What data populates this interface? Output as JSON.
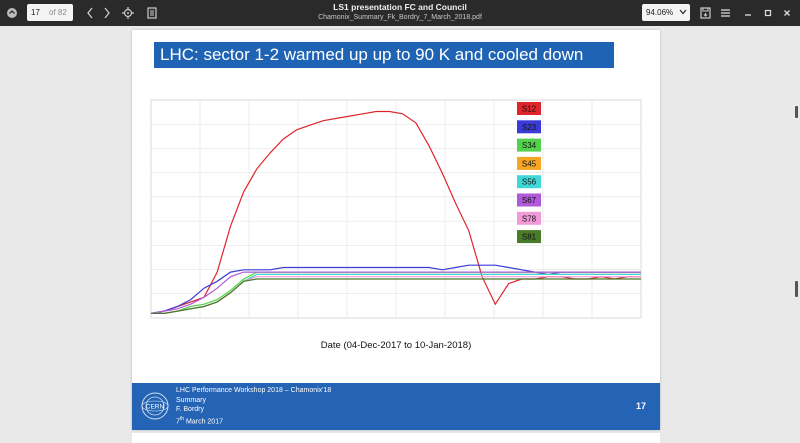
{
  "toolbar": {
    "page_current": "17",
    "page_of": "of 82",
    "doc_title": "LS1 presentation FC and Council",
    "doc_filename": "Chamonix_Summary_Fk_Bordry_7_March_2018.pdf",
    "zoom": "94.06%"
  },
  "slide": {
    "title": "LHC: sector 1-2 warmed up up to 90 K and cooled down",
    "caption": "Date (04-Dec-2017 to 10-Jan-2018)",
    "footer": {
      "line1": "LHC Performance Workshop 2018 – Chamonix'18",
      "line2": "Summary",
      "line3": "F. Bordry",
      "line4_day": "7",
      "line4_sup": "th",
      "line4_rest": " March 2017",
      "page_number": "17",
      "logo_text": "CERN"
    }
  },
  "chart_data": {
    "type": "line",
    "xlabel": "Date (04-Dec-2017 to 10-Jan-2018)",
    "x": [
      0,
      1,
      2,
      3,
      4,
      5,
      6,
      7,
      8,
      9,
      10,
      11,
      12,
      13,
      14,
      15,
      16,
      17,
      18,
      19,
      20,
      21,
      22,
      23,
      24,
      25,
      26,
      27,
      28,
      29,
      30,
      31,
      32,
      33,
      34,
      35,
      36,
      37
    ],
    "series": [
      {
        "name": "S12",
        "color": "#e0242b",
        "values": [
          2,
          3,
          5,
          7,
          9,
          20,
          40,
          55,
          65,
          72,
          78,
          82,
          84,
          86,
          87,
          88,
          89,
          90,
          90,
          89,
          85,
          75,
          63,
          50,
          38,
          18,
          6,
          15,
          17,
          17,
          18,
          18,
          17,
          17,
          18,
          17,
          18,
          18
        ]
      },
      {
        "name": "S23",
        "color": "#3a3ad8",
        "values": [
          2,
          3,
          5,
          8,
          13,
          16,
          20,
          21,
          21,
          21,
          22,
          22,
          22,
          22,
          22,
          22,
          22,
          22,
          22,
          22,
          22,
          22,
          21,
          22,
          23,
          23,
          23,
          22,
          21,
          20,
          19,
          20,
          20,
          20,
          20,
          20,
          20,
          20
        ]
      },
      {
        "name": "S34",
        "color": "#52d24a",
        "values": [
          2,
          2,
          3,
          5,
          6,
          8,
          12,
          17,
          20,
          20,
          20,
          20,
          20,
          20,
          20,
          20,
          20,
          20,
          20,
          20,
          20,
          20,
          20,
          20,
          20,
          20,
          20,
          20,
          20,
          20,
          20,
          20,
          20,
          20,
          20,
          20,
          20,
          20
        ]
      },
      {
        "name": "S45",
        "color": "#f5a623",
        "values": [
          2,
          2,
          3,
          4,
          5,
          7,
          11,
          16,
          19,
          19,
          19,
          19,
          19,
          19,
          19,
          19,
          19,
          19,
          19,
          19,
          19,
          19,
          19,
          19,
          19,
          19,
          19,
          19,
          19,
          19,
          19,
          19,
          19,
          19,
          19,
          19,
          19,
          19
        ]
      },
      {
        "name": "S56",
        "color": "#3fd7d7",
        "values": [
          2,
          2,
          3,
          4,
          5,
          7,
          11,
          16,
          19,
          19,
          19,
          19,
          19,
          19,
          19,
          19,
          19,
          19,
          19,
          19,
          19,
          19,
          19,
          19,
          19,
          19,
          19,
          19,
          19,
          19,
          19,
          19,
          19,
          19,
          19,
          19,
          19,
          19
        ]
      },
      {
        "name": "S67",
        "color": "#b05ad8",
        "values": [
          2,
          3,
          4,
          6,
          9,
          13,
          18,
          20,
          20,
          20,
          20,
          20,
          20,
          20,
          20,
          20,
          20,
          20,
          20,
          20,
          20,
          20,
          20,
          20,
          20,
          20,
          20,
          20,
          20,
          20,
          20,
          20,
          20,
          20,
          20,
          20,
          20,
          20
        ]
      },
      {
        "name": "S78",
        "color": "#f09ad8",
        "values": [
          2,
          2,
          3,
          4,
          5,
          7,
          11,
          16,
          18,
          18,
          18,
          18,
          18,
          18,
          18,
          18,
          18,
          18,
          18,
          18,
          18,
          18,
          18,
          18,
          18,
          18,
          18,
          18,
          18,
          18,
          18,
          18,
          18,
          18,
          18,
          18,
          18,
          18
        ]
      },
      {
        "name": "S81",
        "color": "#4a7a2a",
        "values": [
          2,
          2,
          3,
          4,
          5,
          7,
          11,
          16,
          17,
          17,
          17,
          17,
          17,
          17,
          17,
          17,
          17,
          17,
          17,
          17,
          17,
          17,
          17,
          17,
          17,
          17,
          17,
          17,
          17,
          17,
          17,
          17,
          17,
          17,
          17,
          17,
          17,
          17
        ]
      }
    ],
    "ylim": [
      0,
      95
    ],
    "grid": true,
    "legend_position": "top-right"
  },
  "icons": {
    "app": "app-icon",
    "prev": "chevron-left-icon",
    "next": "chevron-right-icon",
    "locate": "crosshair-icon",
    "doc": "document-icon",
    "zoom_dropdown": "chevron-down-icon",
    "save": "save-icon",
    "menu": "hamburger-menu-icon",
    "minimize": "minimize-icon",
    "maximize": "maximize-icon",
    "close": "close-icon"
  }
}
